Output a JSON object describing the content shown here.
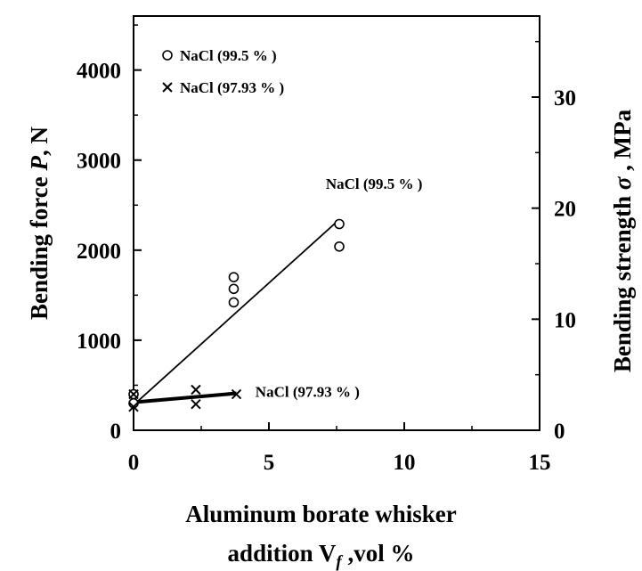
{
  "chart_data": {
    "type": "scatter",
    "x_axis": {
      "label_line1": "Aluminum borate whisker",
      "label_line2": "addition V",
      "label_subscript": "f",
      "label_unit": " ,vol %",
      "range": [
        0,
        15
      ],
      "ticks": [
        "0",
        "5",
        "10",
        "15"
      ]
    },
    "y_left": {
      "label_prefix": "Bending force ",
      "label_var": "P",
      "label_suffix": ", N",
      "range": [
        0,
        4600
      ],
      "ticks": [
        "0",
        "1000",
        "2000",
        "3000",
        "4000"
      ]
    },
    "y_right": {
      "label_prefix": "Bending strength ",
      "label_var": "σ",
      "label_suffix": " , MPa",
      "range": [
        0,
        37.3
      ],
      "ticks": [
        "0",
        "10",
        "20",
        "30"
      ]
    },
    "legend": [
      {
        "marker": "circle",
        "label": "NaCl (99.5 % )"
      },
      {
        "marker": "cross",
        "label": "NaCl (97.93 % )"
      }
    ],
    "series": [
      {
        "name": "NaCl (99.5 % )",
        "marker": "circle",
        "points": [
          {
            "x": 0,
            "y": 300
          },
          {
            "x": 0,
            "y": 400
          },
          {
            "x": 3.7,
            "y": 1420
          },
          {
            "x": 3.7,
            "y": 1570
          },
          {
            "x": 3.7,
            "y": 1700
          },
          {
            "x": 7.6,
            "y": 2040
          },
          {
            "x": 7.6,
            "y": 2290
          }
        ],
        "fit": {
          "x": [
            0,
            7.6
          ],
          "y": [
            280,
            2340
          ]
        }
      },
      {
        "name": "NaCl (97.93 % )",
        "marker": "cross",
        "points": [
          {
            "x": 0,
            "y": 260
          },
          {
            "x": 0,
            "y": 400
          },
          {
            "x": 2.3,
            "y": 290
          },
          {
            "x": 2.3,
            "y": 450
          },
          {
            "x": 3.8,
            "y": 400
          }
        ],
        "fit": {
          "x": [
            0,
            3.8
          ],
          "y": [
            310,
            410
          ]
        }
      }
    ],
    "annotations": [
      {
        "text": "NaCl (99.5 % )",
        "x": 7.1,
        "y": 2680
      },
      {
        "text": "NaCl (97.93 % )",
        "x": 4.5,
        "y": 370
      }
    ]
  }
}
